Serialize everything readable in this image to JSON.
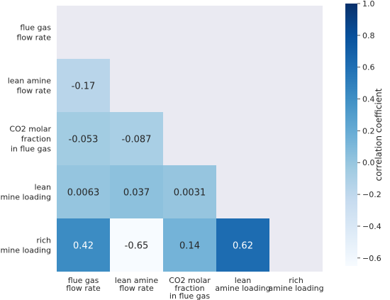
{
  "chart_data": {
    "type": "heatmap",
    "title": "",
    "row_labels": [
      [
        "flue gas",
        "flow rate"
      ],
      [
        "lean amine",
        "flow rate"
      ],
      [
        "CO2 molar",
        "fraction",
        "in flue gas"
      ],
      [
        "lean",
        "amine loading"
      ],
      [
        "rich",
        "amine loading"
      ]
    ],
    "col_labels": [
      [
        "flue gas",
        "flow rate"
      ],
      [
        "lean amine",
        "flow rate"
      ],
      [
        "CO2 molar",
        "fraction",
        "in flue gas"
      ],
      [
        "lean",
        "amine loading"
      ],
      [
        "rich",
        "amine loading"
      ]
    ],
    "mask": "upper-triangle-including-diagonal",
    "cells": [
      {
        "row": 1,
        "col": 0,
        "value": -0.17,
        "label": "-0.17"
      },
      {
        "row": 2,
        "col": 0,
        "value": -0.053,
        "label": "-0.053"
      },
      {
        "row": 2,
        "col": 1,
        "value": -0.087,
        "label": "-0.087"
      },
      {
        "row": 3,
        "col": 0,
        "value": 0.0063,
        "label": "0.0063"
      },
      {
        "row": 3,
        "col": 1,
        "value": 0.037,
        "label": "0.037"
      },
      {
        "row": 3,
        "col": 2,
        "value": 0.0031,
        "label": "0.0031"
      },
      {
        "row": 4,
        "col": 0,
        "value": 0.42,
        "label": "0.42"
      },
      {
        "row": 4,
        "col": 1,
        "value": -0.65,
        "label": "-0.65"
      },
      {
        "row": 4,
        "col": 2,
        "value": 0.14,
        "label": "0.14"
      },
      {
        "row": 4,
        "col": 3,
        "value": 0.62,
        "label": "0.62"
      }
    ],
    "colorbar": {
      "label": "correlation coefficient",
      "vmin": -0.65,
      "vmax": 1.0,
      "ticks": [
        1.0,
        0.8,
        0.6,
        0.4,
        0.2,
        0.0,
        -0.2,
        -0.4,
        -0.6
      ],
      "tick_labels": [
        "1.0",
        "0.8",
        "0.6",
        "0.4",
        "0.2",
        "0.0",
        "−0.2",
        "−0.4",
        "−0.6"
      ],
      "colormap": "Blues",
      "stops": [
        "#f7fbff",
        "#deebf7",
        "#c6dbef",
        "#9ecae1",
        "#6baed6",
        "#4292c6",
        "#2171b5",
        "#08519c",
        "#08306b"
      ]
    },
    "background_color": "#eaeaf2"
  }
}
